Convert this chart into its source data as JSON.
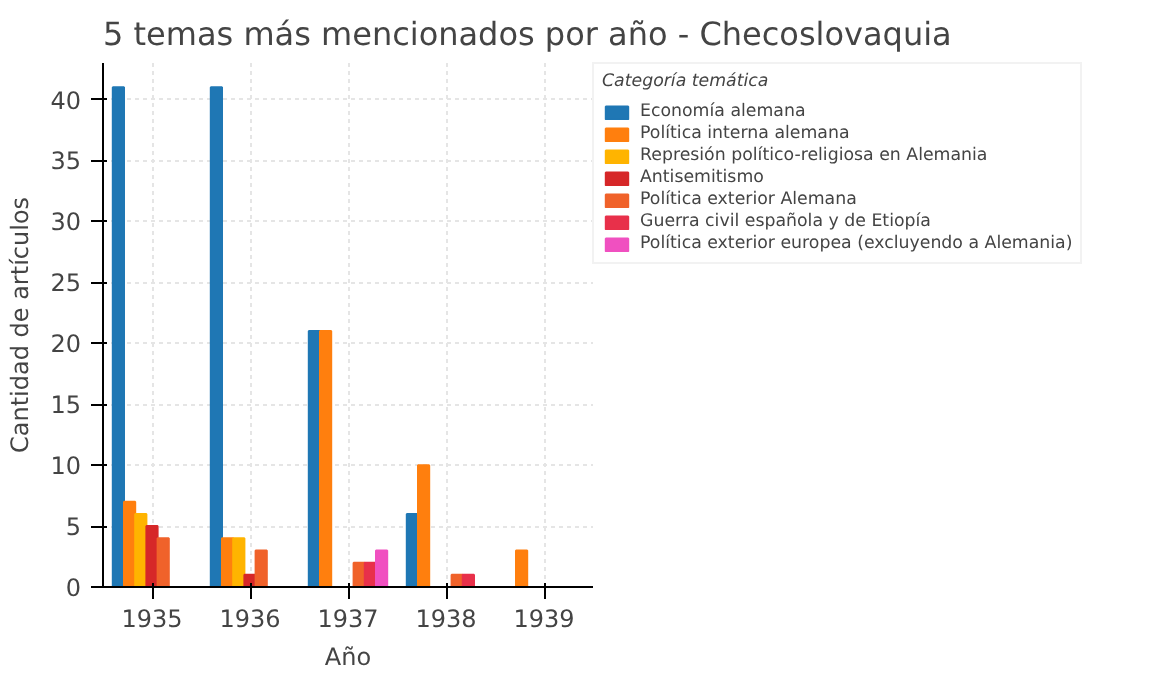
{
  "chart_data": {
    "type": "bar",
    "title": "5 temas más mencionados por año - Checoslovaquia",
    "xlabel": "Año",
    "ylabel": "Cantidad de artículos",
    "legend_title": "Categoría temática",
    "categories": [
      "1935",
      "1936",
      "1937",
      "1938",
      "1939"
    ],
    "series": [
      {
        "name": "Economía alemana",
        "color": "#1f77b4",
        "values": [
          41,
          41,
          21,
          6,
          0
        ]
      },
      {
        "name": "Política interna alemana",
        "color": "#ff7f0e",
        "values": [
          7,
          4,
          21,
          10,
          3
        ]
      },
      {
        "name": "Represión político-religiosa en Alemania",
        "color": "#ffb400",
        "values": [
          6,
          4,
          0,
          0,
          0
        ]
      },
      {
        "name": "Antisemitismo",
        "color": "#d62728",
        "values": [
          5,
          1,
          0,
          0,
          0
        ]
      },
      {
        "name": "Política exterior Alemana",
        "color": "#f0622a",
        "values": [
          4,
          3,
          2,
          1,
          0
        ]
      },
      {
        "name": "Guerra civil española y de Etiopía",
        "color": "#e8304a",
        "values": [
          0,
          0,
          2,
          1,
          0
        ]
      },
      {
        "name": "Política exterior europea (excluyendo a Alemania)",
        "color": "#f050c0",
        "values": [
          0,
          0,
          3,
          0,
          0
        ]
      }
    ],
    "ylim": [
      0,
      43
    ],
    "yticks": [
      0,
      5,
      10,
      15,
      20,
      25,
      30,
      35,
      40
    ],
    "grid": true,
    "legend": "right"
  }
}
